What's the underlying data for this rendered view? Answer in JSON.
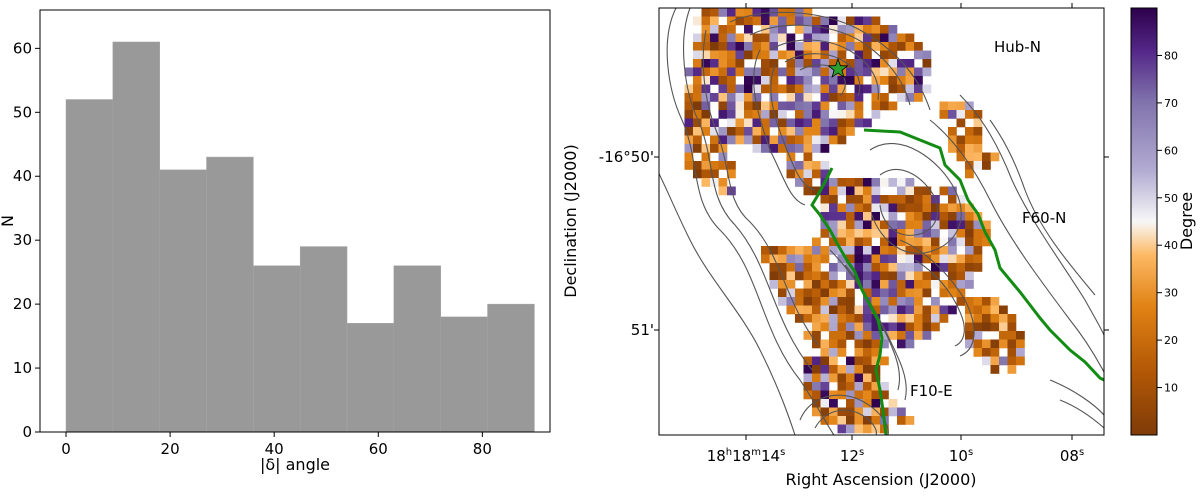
{
  "chart_data": [
    {
      "type": "bar",
      "subtype": "histogram",
      "bin_edges": [
        0,
        9,
        18,
        27,
        36,
        45,
        54,
        63,
        72,
        81,
        90
      ],
      "values": [
        52,
        61,
        41,
        43,
        26,
        29,
        17,
        26,
        18,
        20
      ],
      "bar_color": "#999999",
      "xlabel": "|δ| angle",
      "ylabel": "N",
      "xlim": [
        -5,
        93
      ],
      "ylim": [
        0,
        66
      ],
      "xticks": [
        "0",
        "20",
        "40",
        "60",
        "80"
      ],
      "xtick_values": [
        0,
        20,
        40,
        60,
        80
      ],
      "yticks": [
        "0",
        "10",
        "20",
        "30",
        "40",
        "50",
        "60"
      ],
      "ytick_values": [
        0,
        10,
        20,
        30,
        40,
        50,
        60
      ],
      "grid": false
    },
    {
      "type": "heatmap",
      "xlabel": "Right Ascension (J2000)",
      "ylabel": "Declination (J2000)",
      "xtick_labels": [
        {
          "base": "18",
          "s1": "h",
          "mid": "18",
          "s2": "m",
          "tail": "14",
          "s3": "s"
        },
        {
          "base": "12",
          "s1": "s"
        },
        {
          "base": "10",
          "s1": "s"
        },
        {
          "base": "08",
          "s1": "s"
        }
      ],
      "ytick_labels": [
        "-16°50'",
        "51'"
      ],
      "annotations": [
        "Hub-N",
        "F60-N",
        "F10-E"
      ],
      "colorbar": {
        "label": "Degree",
        "range": [
          0,
          90
        ],
        "ticks": [
          "10",
          "20",
          "30",
          "40",
          "50",
          "60",
          "70",
          "80"
        ],
        "tick_values": [
          10,
          20,
          30,
          40,
          50,
          60,
          70,
          80
        ],
        "colormap": "PuOr"
      },
      "markers": [
        {
          "label": "",
          "shape": "star",
          "color": "#2ca02c"
        }
      ],
      "line_colors": {
        "filaments": "#138c13",
        "contours": "#555555"
      }
    }
  ]
}
